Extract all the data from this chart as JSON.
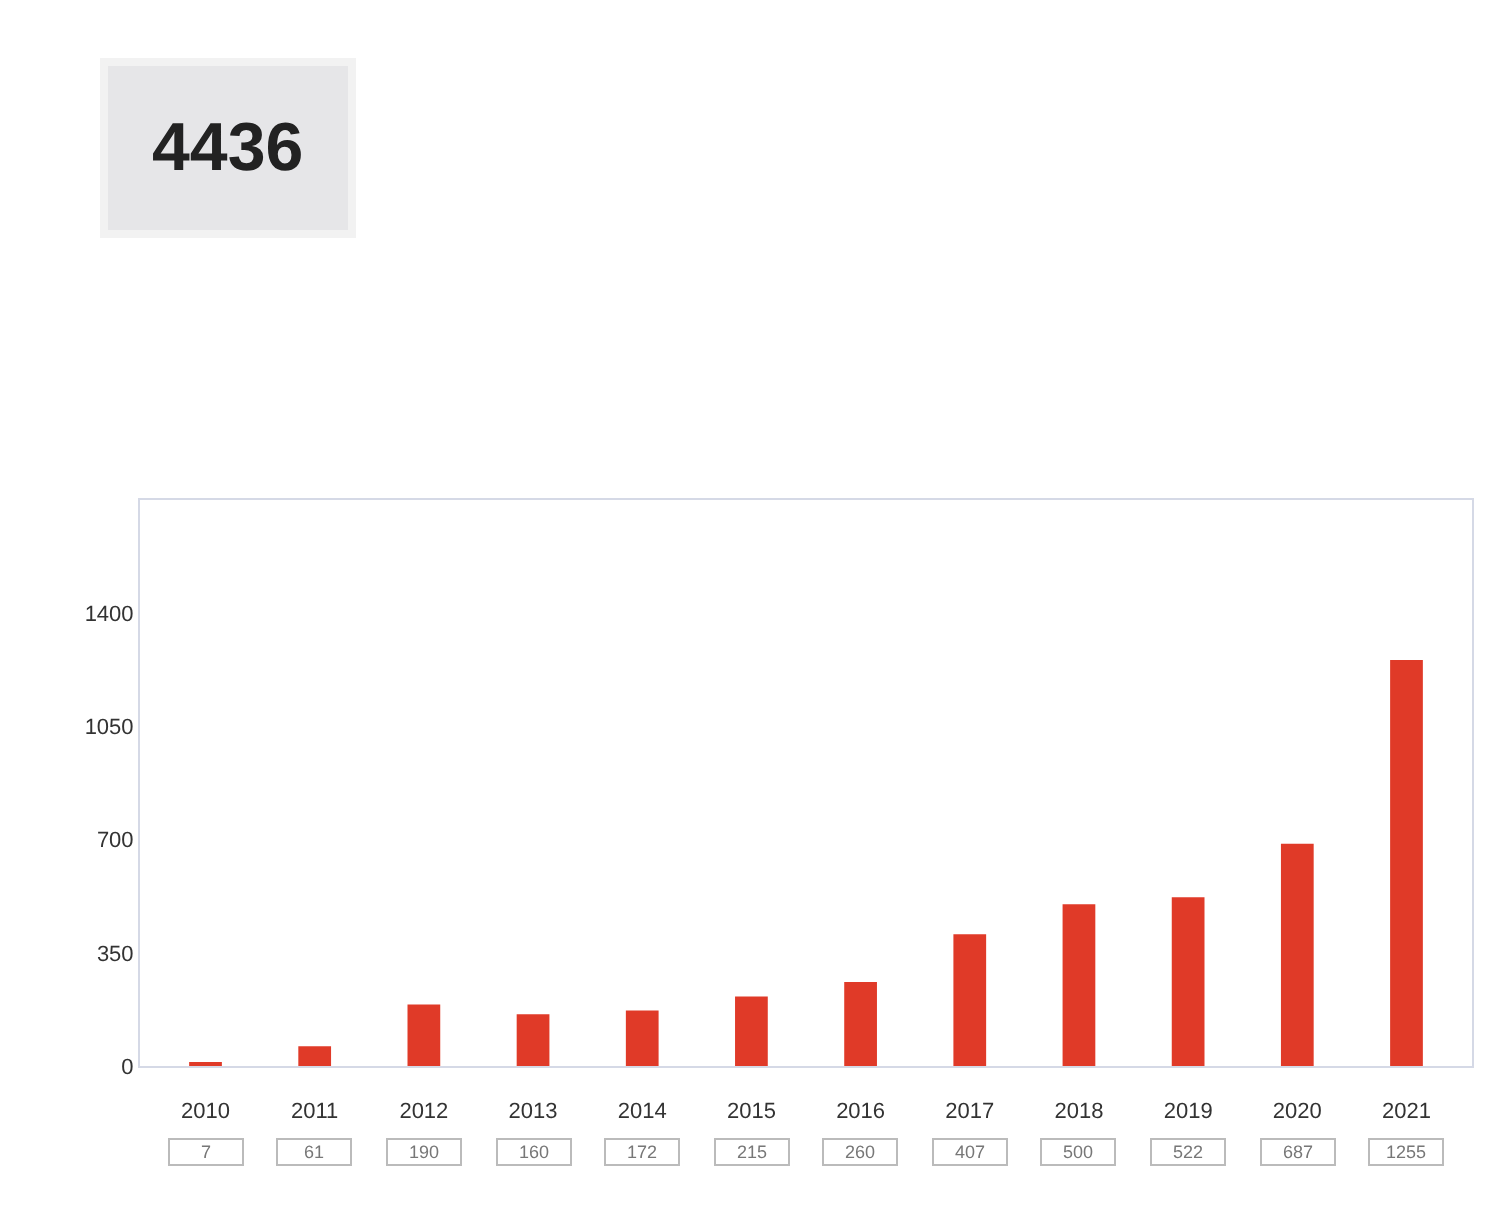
{
  "chart_data": {
    "type": "bar",
    "title": "4436",
    "categories": [
      "2010",
      "2011",
      "2012",
      "2013",
      "2014",
      "2015",
      "2016",
      "2017",
      "2018",
      "2019",
      "2020",
      "2021"
    ],
    "values": [
      7,
      61,
      190,
      160,
      172,
      215,
      260,
      407,
      500,
      522,
      687,
      1255
    ],
    "color": "#e03a28",
    "ylim": [
      0,
      1750
    ],
    "yticks": [
      0,
      350,
      700,
      1050,
      1400
    ],
    "data_labels": true,
    "legend": false
  }
}
